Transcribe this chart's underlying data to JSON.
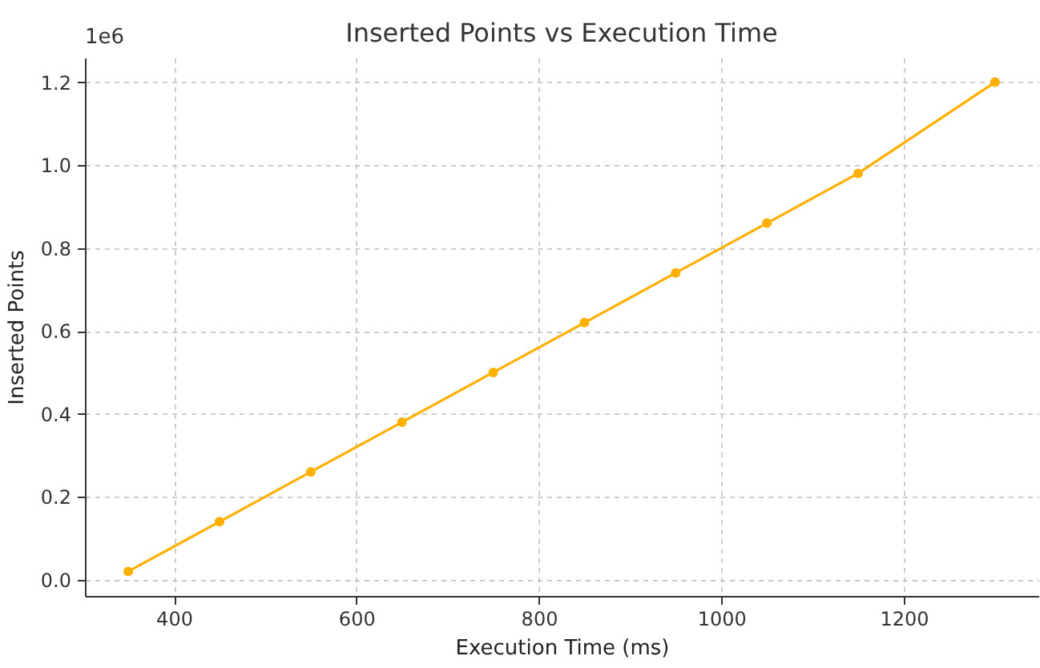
{
  "chart_data": {
    "type": "line",
    "title": "Inserted Points vs Execution Time",
    "xlabel": "Execution Time (ms)",
    "ylabel": "Inserted Points",
    "x": [
      350,
      450,
      550,
      650,
      750,
      850,
      950,
      1050,
      1150,
      1300
    ],
    "series": [
      {
        "color": "#ffb000",
        "values": [
          0.02,
          0.14,
          0.26,
          0.38,
          0.5,
          0.62,
          0.74,
          0.86,
          0.98,
          1.2
        ]
      }
    ],
    "xlim": [
      302.5,
      1347.5
    ],
    "xticks": [
      400,
      600,
      800,
      1000,
      1200
    ],
    "ylim": [
      -0.039,
      1.259
    ],
    "yticks": [
      {
        "value": 0,
        "label": "0.0"
      },
      0.2,
      0.4,
      0.6,
      0.8,
      {
        "value": 1,
        "label": "1.0"
      },
      1.2
    ],
    "annotations": [
      "1e6"
    ],
    "grid": true,
    "marker": "circle",
    "line_style": "solid"
  }
}
